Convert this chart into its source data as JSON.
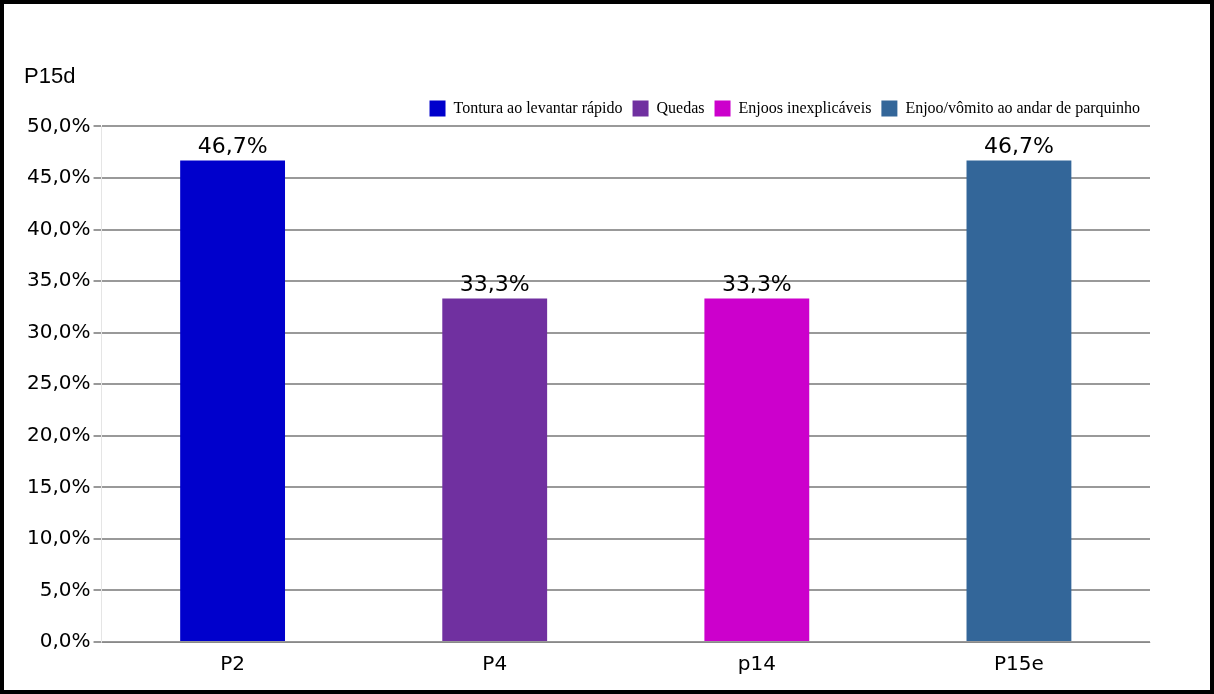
{
  "chart_data": {
    "type": "bar",
    "title": "P15d",
    "categories": [
      "P2",
      "P4",
      "p14",
      "P15e"
    ],
    "series": [
      {
        "name": "Tontura ao levantar rápido",
        "color": "#0000cc",
        "values": [
          46.7,
          null,
          null,
          null
        ],
        "value_labels": [
          "46,7%",
          null,
          null,
          null
        ]
      },
      {
        "name": "Quedas",
        "color": "#7030a0",
        "values": [
          null,
          33.3,
          null,
          null
        ],
        "value_labels": [
          null,
          "33,3%",
          null,
          null
        ]
      },
      {
        "name": "Enjoos inexplicáveis",
        "color": "#cc00cc",
        "values": [
          null,
          null,
          33.3,
          null
        ],
        "value_labels": [
          null,
          null,
          "33,3%",
          null
        ]
      },
      {
        "name": "Enjoo/vômito ao andar de parquinho",
        "color": "#336699",
        "values": [
          null,
          null,
          null,
          46.7
        ],
        "value_labels": [
          null,
          null,
          null,
          "46,7%"
        ]
      }
    ],
    "ylim": [
      0,
      50
    ],
    "yticks": [
      {
        "value": 0,
        "label": "0,0%"
      },
      {
        "value": 5,
        "label": "5,0%"
      },
      {
        "value": 10,
        "label": "10,0%"
      },
      {
        "value": 15,
        "label": "15,0%"
      },
      {
        "value": 20,
        "label": "20,0%"
      },
      {
        "value": 25,
        "label": "25,0%"
      },
      {
        "value": 30,
        "label": "30,0%"
      },
      {
        "value": 35,
        "label": "35,0%"
      },
      {
        "value": 40,
        "label": "40,0%"
      },
      {
        "value": 45,
        "label": "45,0%"
      },
      {
        "value": 50,
        "label": "50,0%"
      }
    ],
    "grid": "y",
    "legend": "top right"
  }
}
